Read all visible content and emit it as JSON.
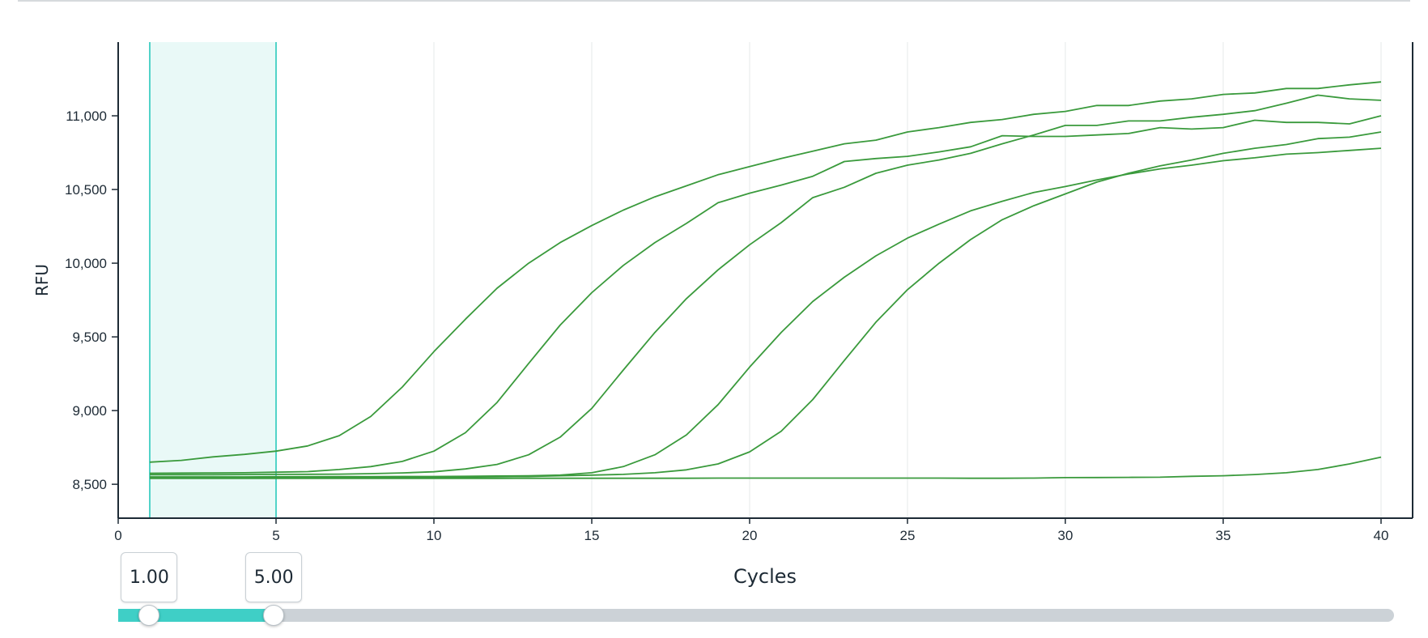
{
  "colors": {
    "series": "#3a9a3c",
    "baseline_fill": "#e9f9f7",
    "baseline_edge": "#52d3c8",
    "grid": "#e6e8ea",
    "axis": "#1d2a35",
    "slider_fill": "#3fcfc6",
    "slider_track": "#ccd2d7"
  },
  "chart_data": {
    "type": "line",
    "xlabel": "Cycles",
    "ylabel": "RFU",
    "xlim": [
      0,
      41
    ],
    "ylim": [
      8270,
      11500
    ],
    "x_ticks": [
      "0",
      "5",
      "10",
      "15",
      "20",
      "25",
      "30",
      "35",
      "40"
    ],
    "y_ticks": [
      "8,500",
      "9,000",
      "9,500",
      "10,000",
      "10,500",
      "11,000"
    ],
    "grid": "vertical",
    "baseline_region": [
      1,
      5
    ],
    "x": [
      1,
      2,
      3,
      4,
      5,
      6,
      7,
      8,
      9,
      10,
      11,
      12,
      13,
      14,
      15,
      16,
      17,
      18,
      19,
      20,
      21,
      22,
      23,
      24,
      25,
      26,
      27,
      28,
      29,
      30,
      31,
      32,
      33,
      34,
      35,
      36,
      37,
      38,
      39,
      40
    ],
    "series": [
      {
        "values": [
          8650,
          8662,
          8686,
          8703,
          8725,
          8760,
          8830,
          8960,
          9160,
          9400,
          9620,
          9830,
          10000,
          10140,
          10255,
          10360,
          10450,
          10525,
          10600,
          10655,
          10710,
          10760,
          10810,
          10835,
          10890,
          10920,
          10955,
          10975,
          11010,
          11030,
          11070,
          11070,
          11100,
          11115,
          11145,
          11155,
          11185,
          11185,
          11210,
          11230
        ]
      },
      {
        "values": [
          8575,
          8576,
          8577,
          8578,
          8582,
          8586,
          8600,
          8620,
          8655,
          8725,
          8850,
          9055,
          9320,
          9580,
          9800,
          9985,
          10140,
          10270,
          10410,
          10475,
          10530,
          10590,
          10690,
          10710,
          10725,
          10755,
          10790,
          10865,
          10860,
          10860,
          10870,
          10880,
          10920,
          10910,
          10920,
          10970,
          10955,
          10955,
          10945,
          11000
        ]
      },
      {
        "values": [
          8565,
          8565,
          8565,
          8566,
          8567,
          8568,
          8569,
          8572,
          8577,
          8585,
          8604,
          8635,
          8700,
          8820,
          9015,
          9275,
          9530,
          9760,
          9955,
          10125,
          10275,
          10445,
          10515,
          10610,
          10665,
          10700,
          10745,
          10810,
          10870,
          10935,
          10935,
          10965,
          10965,
          10990,
          11010,
          11035,
          11085,
          11140,
          11115,
          11105
        ]
      },
      {
        "values": [
          8550,
          8550,
          8550,
          8550,
          8551,
          8551,
          8552,
          8552,
          8553,
          8553,
          8554,
          8556,
          8558,
          8562,
          8578,
          8620,
          8700,
          8835,
          9040,
          9295,
          9530,
          9740,
          9905,
          10050,
          10170,
          10265,
          10355,
          10420,
          10480,
          10520,
          10565,
          10605,
          10640,
          10665,
          10695,
          10715,
          10740,
          10750,
          10765,
          10780
        ]
      },
      {
        "values": [
          8545,
          8545,
          8545,
          8545,
          8545,
          8546,
          8546,
          8547,
          8547,
          8548,
          8549,
          8551,
          8553,
          8558,
          8562,
          8567,
          8578,
          8598,
          8638,
          8720,
          8860,
          9075,
          9340,
          9600,
          9820,
          10000,
          10160,
          10295,
          10390,
          10470,
          10550,
          10610,
          10660,
          10700,
          10745,
          10780,
          10805,
          10845,
          10855,
          10890
        ]
      },
      {
        "values": [
          8540,
          8540,
          8540,
          8540,
          8540,
          8540,
          8540,
          8540,
          8540,
          8540,
          8540,
          8540,
          8541,
          8541,
          8541,
          8541,
          8541,
          8541,
          8542,
          8542,
          8542,
          8542,
          8542,
          8542,
          8542,
          8542,
          8541,
          8541,
          8542,
          8545,
          8546,
          8547,
          8548,
          8554,
          8558,
          8566,
          8578,
          8600,
          8638,
          8684
        ]
      }
    ]
  },
  "slider": {
    "min": 0,
    "max": 41,
    "low": 1,
    "high": 5,
    "low_label": "1.00",
    "high_label": "5.00"
  }
}
